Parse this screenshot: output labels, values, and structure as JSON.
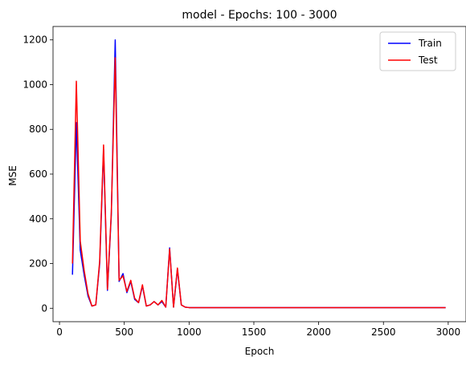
{
  "chart_data": {
    "type": "line",
    "title": "model - Epochs: 100 - 3000",
    "xlabel": "Epoch",
    "ylabel": "MSE",
    "xlim": [
      -50,
      3100
    ],
    "ylim": [
      -60,
      1260
    ],
    "xticks": [
      0,
      500,
      1000,
      1500,
      2000,
      2500,
      3000
    ],
    "yticks": [
      0,
      200,
      400,
      600,
      800,
      1000,
      1200
    ],
    "grid": false,
    "legend_position": "top-right",
    "x": [
      100,
      130,
      160,
      190,
      220,
      250,
      280,
      310,
      340,
      370,
      400,
      430,
      460,
      490,
      520,
      550,
      580,
      610,
      640,
      670,
      700,
      730,
      760,
      790,
      820,
      850,
      880,
      910,
      940,
      970,
      1000,
      1100,
      1200,
      1300,
      1400,
      1500,
      1600,
      1700,
      1800,
      1900,
      2000,
      2100,
      2200,
      2300,
      2400,
      2500,
      2600,
      2700,
      2800,
      2900,
      2980
    ],
    "series": [
      {
        "name": "Train",
        "color": "#0000ff",
        "values": [
          150,
          830,
          260,
          150,
          55,
          10,
          15,
          200,
          710,
          80,
          420,
          1200,
          120,
          155,
          70,
          120,
          40,
          25,
          100,
          10,
          15,
          30,
          15,
          30,
          5,
          270,
          5,
          175,
          15,
          5,
          3,
          3,
          3,
          3,
          3,
          3,
          3,
          3,
          3,
          3,
          3,
          3,
          3,
          3,
          3,
          3,
          3,
          3,
          3,
          3,
          3
        ]
      },
      {
        "name": "Test",
        "color": "#ff0000",
        "values": [
          200,
          1015,
          300,
          170,
          65,
          10,
          15,
          210,
          730,
          85,
          430,
          1120,
          125,
          145,
          75,
          125,
          45,
          25,
          105,
          10,
          15,
          30,
          15,
          35,
          5,
          265,
          5,
          180,
          15,
          5,
          3,
          3,
          3,
          3,
          3,
          3,
          3,
          3,
          3,
          3,
          3,
          3,
          3,
          3,
          3,
          3,
          3,
          3,
          3,
          3,
          3
        ]
      }
    ]
  }
}
